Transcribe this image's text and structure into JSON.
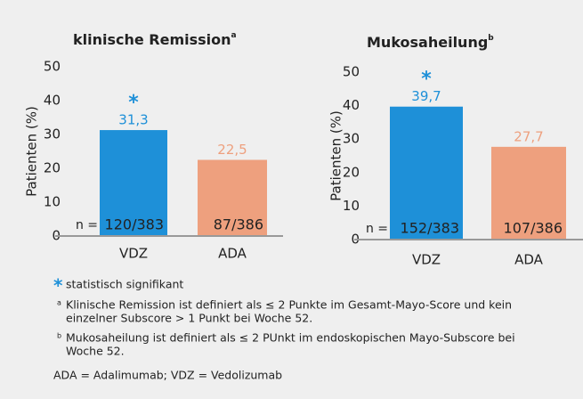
{
  "chart_data": [
    {
      "type": "bar",
      "title": "klinische Remission",
      "title_note": "a",
      "ylabel": "Patienten (%)",
      "categories": [
        "VDZ",
        "ADA"
      ],
      "values": [
        31.3,
        22.5
      ],
      "value_labels": [
        "31,3",
        "22,5"
      ],
      "colors": [
        "#1e90d8",
        "#eea07e"
      ],
      "n_prefix": "n =",
      "n_labels": [
        "120/383",
        "87/386"
      ],
      "marker": "*",
      "marker_index": 0,
      "ylim": [
        0,
        50
      ],
      "yticks": [
        0,
        10,
        20,
        30,
        40,
        50
      ]
    },
    {
      "type": "bar",
      "title": "Mukosaheilung",
      "title_note": "b",
      "ylabel": "Patienten (%)",
      "categories": [
        "VDZ",
        "ADA"
      ],
      "values": [
        39.7,
        27.7
      ],
      "value_labels": [
        "39,7",
        "27,7"
      ],
      "colors": [
        "#1e90d8",
        "#eea07e"
      ],
      "n_prefix": "n =",
      "n_labels": [
        "152/383",
        "107/386"
      ],
      "marker": "*",
      "marker_index": 0,
      "ylim": [
        0,
        50
      ],
      "yticks": [
        0,
        10,
        20,
        30,
        40,
        50
      ]
    }
  ],
  "footnotes": {
    "symbol": "*",
    "symbol_text": "statistisch signifikant",
    "notes": [
      {
        "mark": "a",
        "lines": [
          "Klinische Remission ist definiert als ≤ 2 Punkte im Gesamt-Mayo-Score und kein",
          "einzelner Subscore > 1 Punkt bei Woche 52."
        ]
      },
      {
        "mark": "b",
        "lines": [
          "Mukosaheilung ist definiert als ≤ 2 PUnkt im endoskopischen Mayo-Subscore bei",
          "Woche 52."
        ]
      }
    ],
    "abbreviations": "ADA = Adalimumab; VDZ = Vedolizumab"
  }
}
